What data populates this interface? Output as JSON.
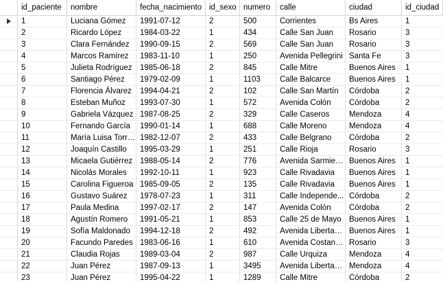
{
  "columns": [
    "id_paciente",
    "nombre",
    "fecha_nacimiento",
    "id_sexo",
    "numero",
    "calle",
    "ciudad",
    "id_ciudad"
  ],
  "rows": [
    [
      "1",
      "Luciana Gómez",
      "1991-07-12",
      "2",
      "500",
      "Corrientes",
      "Bs Aires",
      "1"
    ],
    [
      "2",
      "Ricardo López",
      "1984-03-22",
      "1",
      "434",
      "Calle San Juan",
      "Rosario",
      "3"
    ],
    [
      "3",
      "Clara Fernández",
      "1990-09-15",
      "2",
      "569",
      "Calle San Juan",
      "Rosario",
      "3"
    ],
    [
      "4",
      "Marcos Ramírez",
      "1983-11-10",
      "1",
      "250",
      "Avenida Pellegrini",
      "Santa Fe",
      "3"
    ],
    [
      "5",
      "Julieta Rodríguez",
      "1985-06-18",
      "2",
      "845",
      "Calle Mitre",
      "Buenos Aires",
      "1"
    ],
    [
      "6",
      "Santiago Pérez",
      "1979-02-09",
      "1",
      "1103",
      "Calle Balcarce",
      "Buenos Aires",
      "1"
    ],
    [
      "7",
      "Florencia Álvarez",
      "1994-04-21",
      "2",
      "102",
      "Calle San Martín",
      "Córdoba",
      "2"
    ],
    [
      "8",
      "Esteban Muñoz",
      "1993-07-30",
      "1",
      "572",
      "Avenida Colón",
      "Córdoba",
      "2"
    ],
    [
      "9",
      "Gabriela Vázquez",
      "1987-08-25",
      "2",
      "329",
      "Calle Caseros",
      "Mendoza",
      "4"
    ],
    [
      "10",
      "Fernando García",
      "1990-01-14",
      "1",
      "688",
      "Calle Moreno",
      "Mendoza",
      "4"
    ],
    [
      "11",
      "María Luisa Torres",
      "1982-12-07",
      "2",
      "433",
      "Calle Belgrano",
      "Córdoba",
      "2"
    ],
    [
      "12",
      "Joaquín Castillo",
      "1995-03-29",
      "1",
      "251",
      "Calle Rioja",
      "Rosario",
      "3"
    ],
    [
      "13",
      "Micaela Gutiérrez",
      "1988-05-14",
      "2",
      "776",
      "Avenida Sarmiento",
      "Buenos Aires",
      "1"
    ],
    [
      "14",
      "Nicolás Morales",
      "1992-10-11",
      "1",
      "923",
      "Calle Rivadavia",
      "Buenos Aires",
      "1"
    ],
    [
      "15",
      "Carolina Figueroa",
      "1985-09-05",
      "2",
      "135",
      "Calle Rivadavia",
      "Buenos Aires",
      "1"
    ],
    [
      "16",
      "Gustavo Suárez",
      "1978-07-23",
      "1",
      "311",
      "Calle Independe...",
      "Córdoba",
      "2"
    ],
    [
      "17",
      "Paula Medina",
      "1997-02-17",
      "2",
      "147",
      "Avenida Colón",
      "Córdoba",
      "2"
    ],
    [
      "18",
      "Agustín Romero",
      "1991-05-21",
      "1",
      "853",
      "Calle 25 de Mayo",
      "Buenos Aires",
      "1"
    ],
    [
      "19",
      "Sofía Maldonado",
      "1994-12-18",
      "2",
      "492",
      "Avenida Libertador",
      "Buenos Aires",
      "1"
    ],
    [
      "20",
      "Facundo Paredes",
      "1983-06-16",
      "1",
      "610",
      "Avenida Costanera",
      "Rosario",
      "3"
    ],
    [
      "21",
      "Claudia Rojas",
      "1989-03-04",
      "2",
      "987",
      "Calle Urquiza",
      "Mendoza",
      "4"
    ],
    [
      "22",
      "Juan Pérez",
      "1987-09-13",
      "1",
      "3495",
      "Avenida Libertador",
      "Mendoza",
      "4"
    ],
    [
      "23",
      "Juan Pérez",
      "1995-04-22",
      "1",
      "1289",
      "Calle Mitre",
      "Córdoba",
      "2"
    ]
  ],
  "current_row_icon": "arrow-right-icon"
}
